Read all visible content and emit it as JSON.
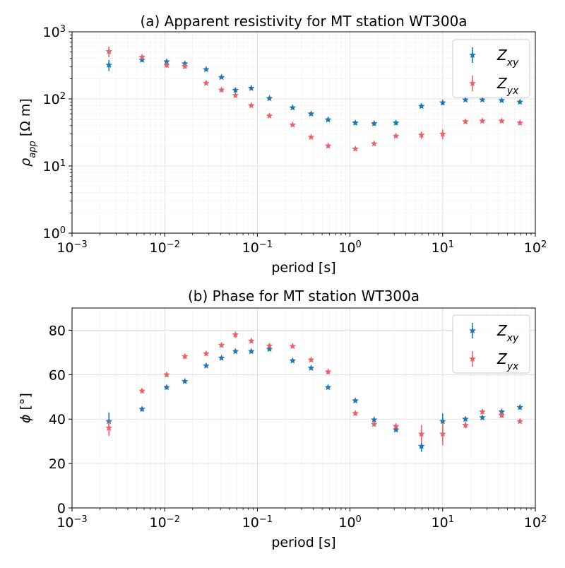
{
  "chart_data": [
    {
      "type": "scatter",
      "title": "(a) Apparent resistivity for MT station WT300a",
      "xlabel": "period [s]",
      "ylabel_main": "ρ",
      "ylabel_sub": "app",
      "ylabel_unit": "[Ω m]",
      "x_scale": "log",
      "y_scale": "log",
      "xlim": [
        0.001,
        100
      ],
      "ylim": [
        1,
        1000
      ],
      "x_ticks": [
        {
          "base": "10",
          "exp": "−3"
        },
        {
          "base": "10",
          "exp": "−2"
        },
        {
          "base": "10",
          "exp": "−1"
        },
        {
          "base": "10",
          "exp": "0"
        },
        {
          "base": "10",
          "exp": "1"
        },
        {
          "base": "10",
          "exp": "2"
        }
      ],
      "y_ticks": [
        {
          "base": "10",
          "exp": "0"
        },
        {
          "base": "10",
          "exp": "1"
        },
        {
          "base": "10",
          "exp": "2"
        },
        {
          "base": "10",
          "exp": "3"
        }
      ],
      "grid": true,
      "legend_position": "top-right",
      "series": [
        {
          "name": "Zxy",
          "name_main": "Z",
          "name_sub": "xy",
          "color": "#1f77b4",
          "x": [
            0.0025,
            0.0057,
            0.0105,
            0.0165,
            0.028,
            0.041,
            0.058,
            0.086,
            0.135,
            0.24,
            0.38,
            0.58,
            1.14,
            1.82,
            3.13,
            5.9,
            10.0,
            17.6,
            26.8,
            43.3,
            68.2
          ],
          "y": [
            320,
            380,
            360,
            335,
            275,
            210,
            135,
            145,
            102,
            74,
            60,
            49,
            44,
            43,
            44,
            78,
            88,
            97,
            97,
            95,
            90
          ],
          "err": [
            60,
            25,
            25,
            20,
            15,
            10,
            10,
            10,
            6,
            4,
            3,
            3,
            3,
            3,
            3,
            5,
            7,
            5,
            5,
            5,
            5
          ]
        },
        {
          "name": "Zyx",
          "name_main": "Z",
          "name_sub": "yx",
          "color": "#e8636a",
          "x": [
            0.0025,
            0.0057,
            0.0105,
            0.0165,
            0.028,
            0.041,
            0.058,
            0.086,
            0.135,
            0.24,
            0.38,
            0.58,
            1.14,
            1.82,
            3.13,
            5.9,
            10.0,
            17.6,
            26.8,
            43.3,
            68.2
          ],
          "y": [
            510,
            420,
            318,
            305,
            172,
            136,
            113,
            80,
            56,
            41,
            27,
            20,
            18,
            21.5,
            28,
            29,
            30,
            46,
            47,
            47,
            44
          ],
          "err": [
            90,
            30,
            25,
            20,
            10,
            8,
            8,
            5,
            3,
            2,
            1.5,
            1.2,
            1,
            1.2,
            1.6,
            3.5,
            5,
            3,
            3,
            3,
            3
          ]
        }
      ]
    },
    {
      "type": "scatter",
      "title": "(b) Phase for MT station WT300a",
      "xlabel": "period [s]",
      "ylabel_main": "ϕ",
      "ylabel_unit": "[°]",
      "x_scale": "log",
      "y_scale": "linear",
      "xlim": [
        0.001,
        100
      ],
      "ylim": [
        0,
        90
      ],
      "x_ticks": [
        {
          "base": "10",
          "exp": "−3"
        },
        {
          "base": "10",
          "exp": "−2"
        },
        {
          "base": "10",
          "exp": "−1"
        },
        {
          "base": "10",
          "exp": "0"
        },
        {
          "base": "10",
          "exp": "1"
        },
        {
          "base": "10",
          "exp": "2"
        }
      ],
      "y_ticks": [
        "0",
        "20",
        "40",
        "60",
        "80"
      ],
      "grid": true,
      "legend_position": "top-right",
      "series": [
        {
          "name": "Zxy",
          "name_main": "Z",
          "name_sub": "xy",
          "color": "#1f77b4",
          "x": [
            0.0025,
            0.0057,
            0.0105,
            0.0165,
            0.028,
            0.041,
            0.058,
            0.086,
            0.135,
            0.24,
            0.38,
            0.58,
            1.14,
            1.82,
            3.13,
            5.9,
            10.0,
            17.6,
            26.8,
            43.3,
            68.2
          ],
          "y": [
            39,
            44.5,
            54.3,
            57,
            64,
            67.5,
            70.5,
            70.5,
            71.5,
            66.3,
            63,
            54.3,
            48.3,
            39.7,
            35.2,
            27.8,
            39,
            40,
            40.7,
            43.3,
            45.3
          ],
          "err": [
            4,
            1,
            1,
            0.8,
            0.8,
            0.8,
            0.8,
            0.8,
            0.8,
            0.8,
            0.8,
            0.8,
            0.8,
            0.8,
            0.8,
            2.5,
            3.5,
            1,
            1,
            1,
            1
          ]
        },
        {
          "name": "Zyx",
          "name_main": "Z",
          "name_sub": "yx",
          "color": "#e8636a",
          "x": [
            0.0025,
            0.0057,
            0.0105,
            0.0165,
            0.028,
            0.041,
            0.058,
            0.086,
            0.135,
            0.24,
            0.38,
            0.58,
            1.14,
            1.82,
            3.13,
            5.9,
            10.0,
            17.6,
            26.8,
            43.3,
            68.2
          ],
          "y": [
            36,
            52.7,
            60,
            68.2,
            69.5,
            73.3,
            78,
            75.2,
            73,
            72.8,
            66.7,
            61.3,
            42.6,
            37.7,
            36.8,
            33.3,
            33.3,
            37.3,
            43.3,
            41.7,
            39
          ],
          "err": [
            3.5,
            1,
            1,
            1,
            1,
            1,
            1.5,
            1,
            0.8,
            0.8,
            0.8,
            1,
            1,
            1,
            1,
            4,
            5,
            1.5,
            1,
            1,
            1
          ]
        }
      ]
    }
  ]
}
